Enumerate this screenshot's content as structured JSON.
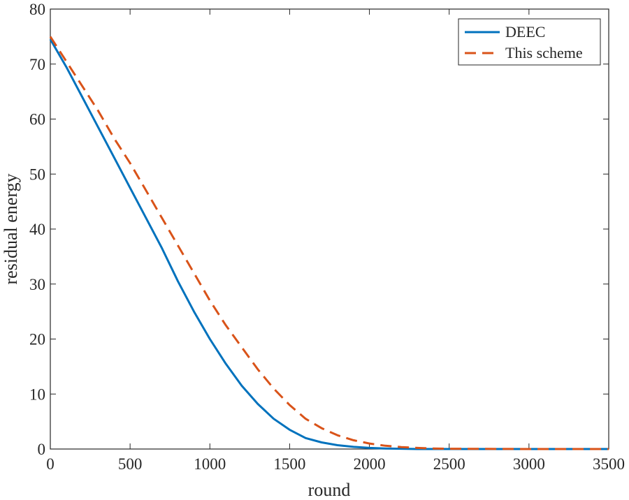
{
  "chart_data": {
    "type": "line",
    "title": "",
    "xlabel": "round",
    "ylabel": "residual energy",
    "xlim": [
      0,
      3500
    ],
    "ylim": [
      0,
      80
    ],
    "xticks": [
      0,
      500,
      1000,
      1500,
      2000,
      2500,
      3000,
      3500
    ],
    "yticks": [
      0,
      10,
      20,
      30,
      40,
      50,
      60,
      70,
      80
    ],
    "grid": false,
    "legend_position": "top-right",
    "series": [
      {
        "name": "DEEC",
        "color": "#0072BD",
        "line_style": "solid",
        "x": [
          0,
          100,
          200,
          300,
          400,
          500,
          600,
          700,
          800,
          900,
          1000,
          1100,
          1200,
          1300,
          1400,
          1500,
          1600,
          1700,
          1800,
          1900,
          2000,
          2100,
          2200,
          2300,
          2400,
          2500,
          3000,
          3500
        ],
        "y": [
          74.5,
          69.5,
          64,
          58.5,
          53,
          47.5,
          42,
          36.5,
          30.5,
          25,
          20,
          15.5,
          11.5,
          8.2,
          5.5,
          3.5,
          2,
          1.2,
          0.7,
          0.4,
          0.2,
          0.1,
          0.05,
          0,
          0,
          0,
          0,
          0
        ]
      },
      {
        "name": "This scheme",
        "color": "#D95319",
        "line_style": "dashed",
        "x": [
          0,
          100,
          200,
          300,
          400,
          500,
          600,
          700,
          800,
          900,
          1000,
          1100,
          1200,
          1300,
          1400,
          1500,
          1600,
          1700,
          1800,
          1900,
          2000,
          2100,
          2200,
          2300,
          2400,
          2500,
          3000,
          3500
        ],
        "y": [
          75,
          70.5,
          66,
          61.5,
          56.5,
          52,
          47,
          42,
          37,
          32,
          27,
          22.5,
          18.5,
          14.5,
          11,
          8,
          5.5,
          3.8,
          2.5,
          1.6,
          1,
          0.6,
          0.35,
          0.2,
          0.1,
          0.05,
          0,
          0
        ]
      }
    ]
  }
}
